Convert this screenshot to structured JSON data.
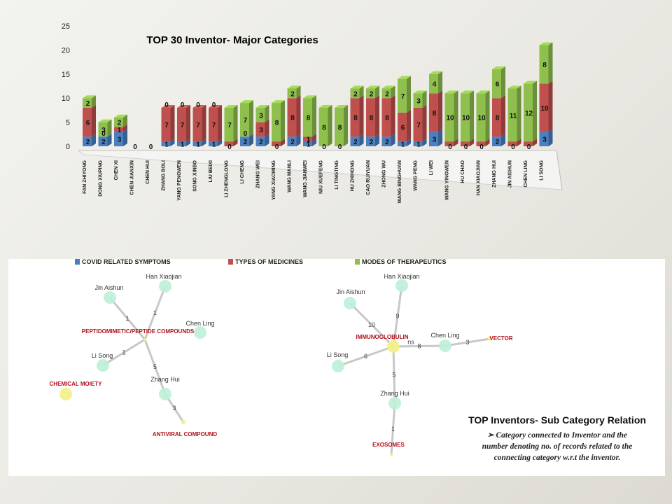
{
  "chart_data": [
    {
      "type": "bar",
      "stacked": true,
      "title": "TOP 30 Inventor- Major Categories",
      "ylim": [
        0,
        25
      ],
      "yticks": [
        0,
        5,
        10,
        15,
        20,
        25
      ],
      "categories": [
        "FAN ZHIYONG",
        "DONG XIUPING",
        "CHEN XI",
        "CHEN JIANXIN",
        "CHEN HUI",
        "ZHANG BOLI",
        "YANG PENGWEN",
        "SONG XINBO",
        "LIU BEIXI",
        "LI ZHENGLONG",
        "LI CHENG",
        "ZHANG WEI",
        "YANG XIAOMING",
        "WANG MANLI",
        "WANG JIANWEI",
        "NIU XUEFENG",
        "LI TINGTING",
        "HU ZHIHONG",
        "CAO RUIYUAN",
        "ZHONG WU",
        "WANG BINGHUAN",
        "WANG PENG",
        "LI WEI",
        "WANG YINGWEN",
        "HU CHAO",
        "HAN XIAOJIAN",
        "ZHANG HUI",
        "JIN AISHUN",
        "CHEN LING",
        "LI SONG"
      ],
      "series": [
        {
          "name": "COVID RELATED SYMPTOMS",
          "color": "#4a7fc1",
          "values": [
            2,
            2,
            3,
            0,
            0,
            1,
            1,
            1,
            1,
            0,
            2,
            2,
            0,
            2,
            1,
            0,
            0,
            2,
            2,
            2,
            1,
            1,
            3,
            0,
            0,
            0,
            2,
            0,
            0,
            3
          ]
        },
        {
          "name": "TYPES OF MEDICINES",
          "color": "#c0504d",
          "values": [
            6,
            0,
            1,
            0,
            0,
            7,
            7,
            7,
            7,
            1,
            0,
            3,
            1,
            8,
            1,
            0,
            0,
            8,
            8,
            8,
            6,
            7,
            8,
            1,
            1,
            1,
            8,
            1,
            1,
            10
          ]
        },
        {
          "name": "MODES OF THERAPEUTICS",
          "color": "#8fbf4d",
          "values": [
            2,
            3,
            2,
            0,
            0,
            0,
            0,
            0,
            0,
            7,
            7,
            3,
            8,
            2,
            8,
            8,
            8,
            2,
            2,
            2,
            7,
            3,
            4,
            10,
            10,
            10,
            6,
            11,
            12,
            8
          ]
        }
      ],
      "data_labels": {
        "COVID RELATED SYMPTOMS": [
          "2",
          "2",
          "3",
          "0",
          "0",
          "1",
          "1",
          "1",
          "1",
          "0",
          "2",
          "2",
          "0",
          "2",
          "1",
          "0",
          "0",
          "2",
          "2",
          "2",
          "1",
          "1",
          "3",
          "0",
          "0",
          "0",
          "2",
          "0",
          "0",
          "3"
        ],
        "TYPES OF MEDICINES": [
          "6",
          "0",
          "1",
          "",
          "",
          "7",
          "7",
          "7",
          "7",
          "",
          "0",
          "3",
          "",
          "8",
          "1",
          "",
          "",
          "8",
          "8",
          "8",
          "6",
          "7",
          "8",
          "",
          "",
          "",
          "8",
          "",
          "",
          "10"
        ],
        "MODES OF THERAPEUTICS": [
          "2",
          "3",
          "2",
          "",
          "",
          "0",
          "0",
          "0",
          "0",
          "7",
          "7",
          "3",
          "8",
          "2",
          "8",
          "8",
          "8",
          "2",
          "2",
          "2",
          "7",
          "3",
          "4",
          "10",
          "10",
          "10",
          "6",
          "11",
          "12",
          "8"
        ]
      }
    },
    {
      "type": "network",
      "nodes": [
        {
          "id": "Han Xiaojian",
          "label": "Han Xiaojian",
          "kind": "inventor"
        },
        {
          "id": "Jin Aishun",
          "label": "Jin Aishun",
          "kind": "inventor"
        },
        {
          "id": "Chen Ling",
          "label": "Chen Ling",
          "kind": "inventor"
        },
        {
          "id": "Li Song",
          "label": "Li Song",
          "kind": "inventor"
        },
        {
          "id": "Zhang Hui",
          "label": "Zhang Hui",
          "kind": "inventor"
        },
        {
          "id": "pep",
          "label": "PEPTIDOMIMETIC/PEPTIDE COMPOUNDS",
          "kind": "category"
        },
        {
          "id": "chem",
          "label": "CHEMICAL MOIETY",
          "kind": "category"
        },
        {
          "id": "antiviral",
          "label": "ANTIVIRAL COMPOUND",
          "kind": "category"
        }
      ],
      "edges": [
        {
          "from": "Han Xiaojian",
          "to": "pep",
          "weight": "1"
        },
        {
          "from": "Jin Aishun",
          "to": "pep",
          "weight": "1"
        },
        {
          "from": "Li Song",
          "to": "pep",
          "weight": "1"
        },
        {
          "from": "pep",
          "to": "Zhang Hui",
          "weight": "5"
        },
        {
          "from": "Zhang Hui",
          "to": "antiviral",
          "weight": "3"
        }
      ]
    },
    {
      "type": "network",
      "nodes": [
        {
          "id": "Han Xiaojian",
          "label": "Han Xiaojian",
          "kind": "inventor"
        },
        {
          "id": "Jin Aishun",
          "label": "Jin Aishun",
          "kind": "inventor"
        },
        {
          "id": "Chen Ling",
          "label": "Chen Ling",
          "kind": "inventor"
        },
        {
          "id": "Li Song",
          "label": "Li Song",
          "kind": "inventor"
        },
        {
          "id": "Zhang Hui",
          "label": "Zhang Hui",
          "kind": "inventor"
        },
        {
          "id": "immuno",
          "label": "IMMUNOGLOBULIN",
          "kind": "category"
        },
        {
          "id": "vector",
          "label": "VECTOR",
          "kind": "category"
        },
        {
          "id": "exo",
          "label": "EXOSOMES",
          "kind": "category"
        }
      ],
      "edges": [
        {
          "from": "Jin Aishun",
          "to": "immuno",
          "weight": "10"
        },
        {
          "from": "Han Xiaojian",
          "to": "immuno",
          "weight": "9"
        },
        {
          "from": "immuno",
          "to": "Chen Ling",
          "weight": "8",
          "extra": "ns"
        },
        {
          "from": "Li Song",
          "to": "immuno",
          "weight": "6"
        },
        {
          "from": "immuno",
          "to": "Zhang Hui",
          "weight": "5"
        },
        {
          "from": "Chen Ling",
          "to": "vector",
          "weight": "3"
        },
        {
          "from": "Zhang Hui",
          "to": "exo",
          "weight": "1"
        }
      ]
    }
  ],
  "caption": {
    "title": "TOP Inventors- Sub Category Relation",
    "bullet": "➢",
    "note_lines": [
      "Category connected to Inventor and the",
      "number denoting  no. of records related to the",
      "connecting category w.r.t  the inventor."
    ]
  },
  "colors": {
    "node_inventor": "#bdf0d8",
    "node_category": "#f2f08a",
    "edge": "#c8c8c8",
    "category_text": "#b0101a"
  }
}
